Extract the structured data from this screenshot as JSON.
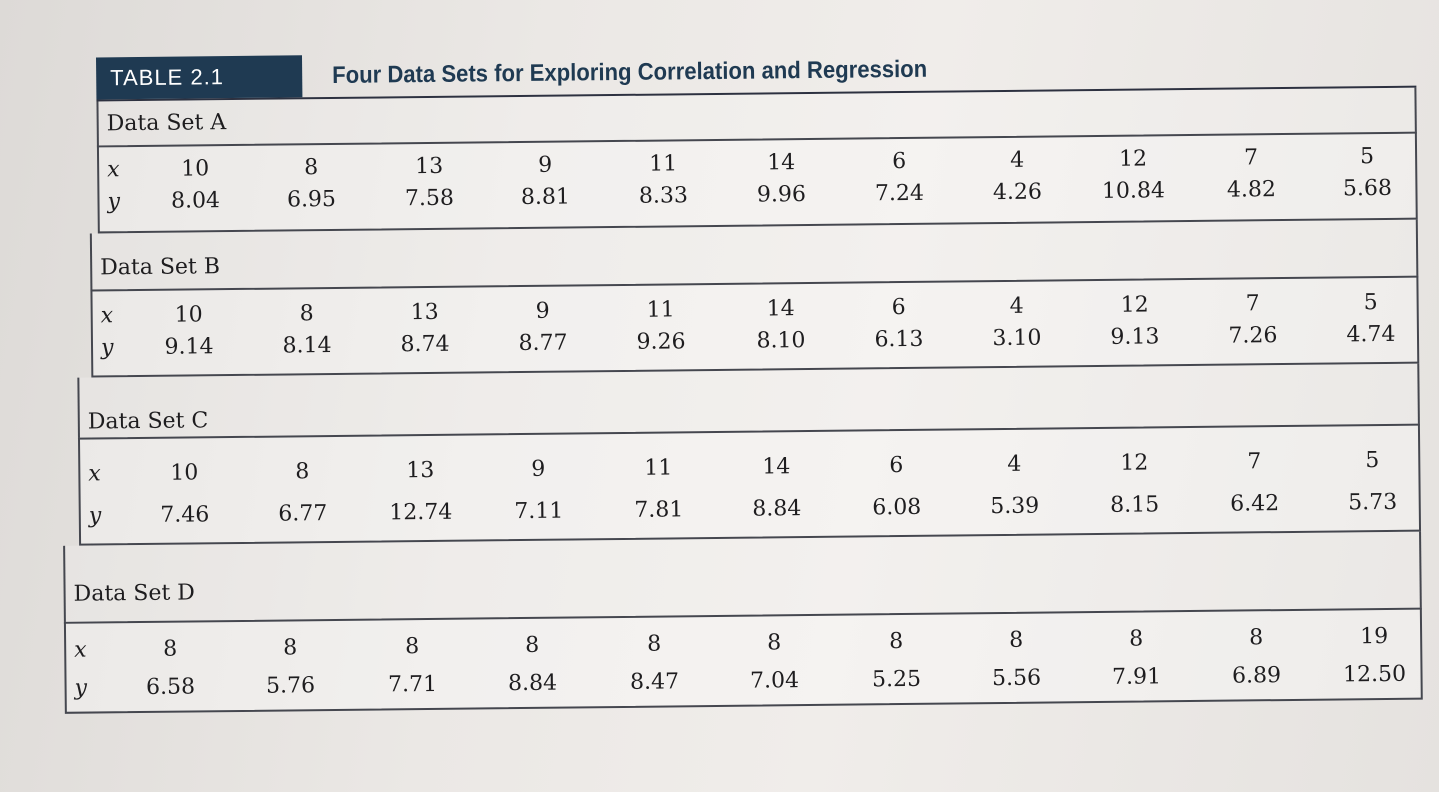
{
  "table": {
    "label": "TABLE 2.1",
    "title": "Four Data Sets for Exploring Correlation and Regression"
  },
  "datasets": [
    {
      "name": "Data Set A",
      "x_label": "x",
      "y_label": "y",
      "x": [
        "10",
        "8",
        "13",
        "9",
        "11",
        "14",
        "6",
        "4",
        "12",
        "7",
        "5"
      ],
      "y": [
        "8.04",
        "6.95",
        "7.58",
        "8.81",
        "8.33",
        "9.96",
        "7.24",
        "4.26",
        "10.84",
        "4.82",
        "5.68"
      ]
    },
    {
      "name": "Data Set B",
      "x_label": "x",
      "y_label": "y",
      "x": [
        "10",
        "8",
        "13",
        "9",
        "11",
        "14",
        "6",
        "4",
        "12",
        "7",
        "5"
      ],
      "y": [
        "9.14",
        "8.14",
        "8.74",
        "8.77",
        "9.26",
        "8.10",
        "6.13",
        "3.10",
        "9.13",
        "7.26",
        "4.74"
      ]
    },
    {
      "name": "Data Set C",
      "x_label": "x",
      "y_label": "y",
      "x": [
        "10",
        "8",
        "13",
        "9",
        "11",
        "14",
        "6",
        "4",
        "12",
        "7",
        "5"
      ],
      "y": [
        "7.46",
        "6.77",
        "12.74",
        "7.11",
        "7.81",
        "8.84",
        "6.08",
        "5.39",
        "8.15",
        "6.42",
        "5.73"
      ]
    },
    {
      "name": "Data Set D",
      "x_label": "x",
      "y_label": "y",
      "x": [
        "8",
        "8",
        "8",
        "8",
        "8",
        "8",
        "8",
        "8",
        "8",
        "8",
        "19"
      ],
      "y": [
        "6.58",
        "5.76",
        "7.71",
        "8.84",
        "8.47",
        "7.04",
        "5.25",
        "5.56",
        "7.91",
        "6.89",
        "12.50"
      ]
    }
  ]
}
